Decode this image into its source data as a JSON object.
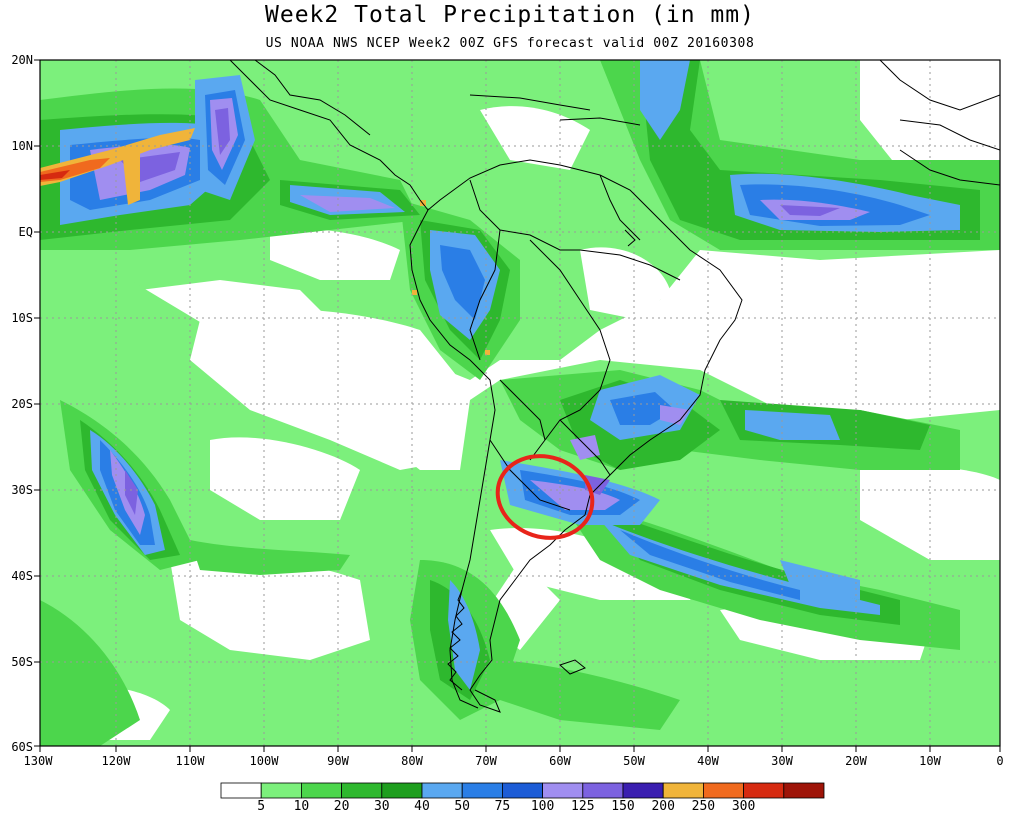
{
  "title": "Week2 Total Precipitation (in mm)",
  "subtitle": "US NOAA NWS NCEP Week2 00Z GFS forecast valid 00Z 20160308",
  "lat_labels": [
    "20N",
    "10N",
    "EQ",
    "10S",
    "20S",
    "30S",
    "40S",
    "50S",
    "60S"
  ],
  "lon_labels": [
    "130W",
    "120W",
    "110W",
    "100W",
    "90W",
    "80W",
    "70W",
    "60W",
    "50W",
    "40W",
    "30W",
    "20W",
    "10W",
    "0"
  ],
  "legend": {
    "thresholds": [
      "5",
      "10",
      "20",
      "30",
      "40",
      "50",
      "75",
      "100",
      "125",
      "150",
      "200",
      "250",
      "300"
    ],
    "colors": [
      "#ffffff",
      "#7cf07c",
      "#4cd64c",
      "#2eb82e",
      "#1e9e1e",
      "#5aa8f0",
      "#2a7ee6",
      "#1c5cd6",
      "#a08ef0",
      "#7c62e0",
      "#3a1eb0",
      "#f0b43a",
      "#f06a1e",
      "#d62a10",
      "#9e1408"
    ]
  },
  "colors": {
    "land_outline": "#000000",
    "grid": "#9a9a9a",
    "highlight_circle": "#e8241a"
  },
  "annotation": {
    "type": "red-ellipse",
    "region": "Northern Argentina / Uruguay"
  }
}
